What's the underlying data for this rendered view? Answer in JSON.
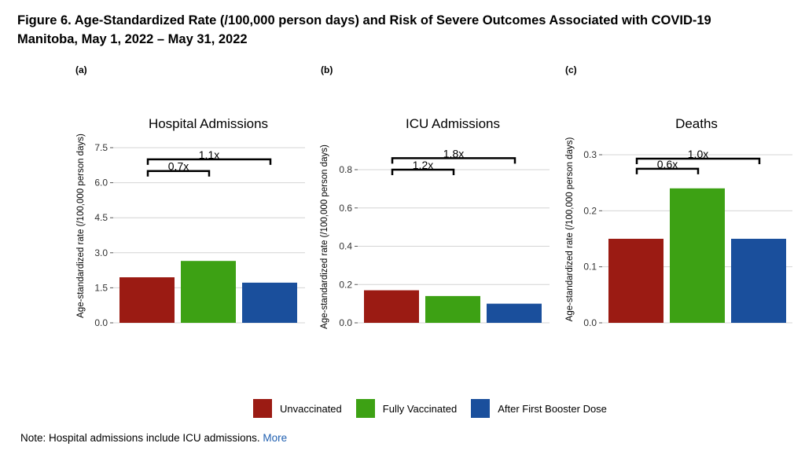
{
  "figure": {
    "title_line1": "Figure 6. Age-Standardized Rate (/100,000 person days) and Risk of Severe Outcomes Associated with COVID-19",
    "title_line2": "Manitoba, May 1, 2022 – May 31, 2022"
  },
  "colors": {
    "unvaccinated": "#9b1b13",
    "fully_vaccinated": "#3da114",
    "booster": "#1a4f9c",
    "grid": "#d4d4d4",
    "axis_text": "#333333"
  },
  "legend": [
    {
      "label": "Unvaccinated",
      "color": "#9b1b13"
    },
    {
      "label": "Fully Vaccinated",
      "color": "#3da114"
    },
    {
      "label": "After First Booster Dose",
      "color": "#1a4f9c"
    }
  ],
  "note": {
    "text": "Note: Hospital admissions include ICU admissions.",
    "link": "More"
  },
  "chart_data": [
    {
      "panel": "(a)",
      "type": "bar",
      "title": "Hospital Admissions",
      "ylabel": "Age-standardized rate (/100,000 person days)",
      "categories": [
        "Unvaccinated",
        "Fully Vaccinated",
        "After First Booster Dose"
      ],
      "values": [
        1.95,
        2.65,
        1.72
      ],
      "ylim": [
        0,
        7.5
      ],
      "yticks": [
        "0.0",
        "1.5",
        "3.0",
        "4.5",
        "6.0",
        "7.5"
      ],
      "ytick_values": [
        0,
        1.5,
        3.0,
        4.5,
        6.0,
        7.5
      ],
      "brackets": [
        {
          "label": "0.7x",
          "from": 0,
          "to": 1,
          "level": 6.5
        },
        {
          "label": "1.1x",
          "from": 0,
          "to": 2,
          "level": 7.0
        }
      ]
    },
    {
      "panel": "(b)",
      "type": "bar",
      "title": "ICU Admissions",
      "ylabel": "Age-standardized rate (/100,000 person days)",
      "categories": [
        "Unvaccinated",
        "Fully Vaccinated",
        "After First Booster Dose"
      ],
      "values": [
        0.17,
        0.14,
        0.1
      ],
      "ylim": [
        0,
        0.9
      ],
      "yticks": [
        "0.0",
        "0.2",
        "0.4",
        "0.6",
        "0.8"
      ],
      "ytick_values": [
        0,
        0.2,
        0.4,
        0.6,
        0.8
      ],
      "brackets": [
        {
          "label": "1.2x",
          "from": 0,
          "to": 1,
          "level": 0.8
        },
        {
          "label": "1.8x",
          "from": 0,
          "to": 2,
          "level": 0.86
        }
      ]
    },
    {
      "panel": "(c)",
      "type": "bar",
      "title": "Deaths",
      "ylabel": "Age-standardized rate (/100,000 person days)",
      "categories": [
        "Unvaccinated",
        "Fully Vaccinated",
        "After First Booster Dose"
      ],
      "values": [
        0.15,
        0.24,
        0.15
      ],
      "ylim": [
        0,
        0.31
      ],
      "yticks": [
        "0.0",
        "0.1",
        "0.2",
        "0.3"
      ],
      "ytick_values": [
        0,
        0.1,
        0.2,
        0.3
      ],
      "brackets": [
        {
          "label": "0.6x",
          "from": 0,
          "to": 1,
          "level": 0.275
        },
        {
          "label": "1.0x",
          "from": 0,
          "to": 2,
          "level": 0.293
        }
      ]
    }
  ]
}
